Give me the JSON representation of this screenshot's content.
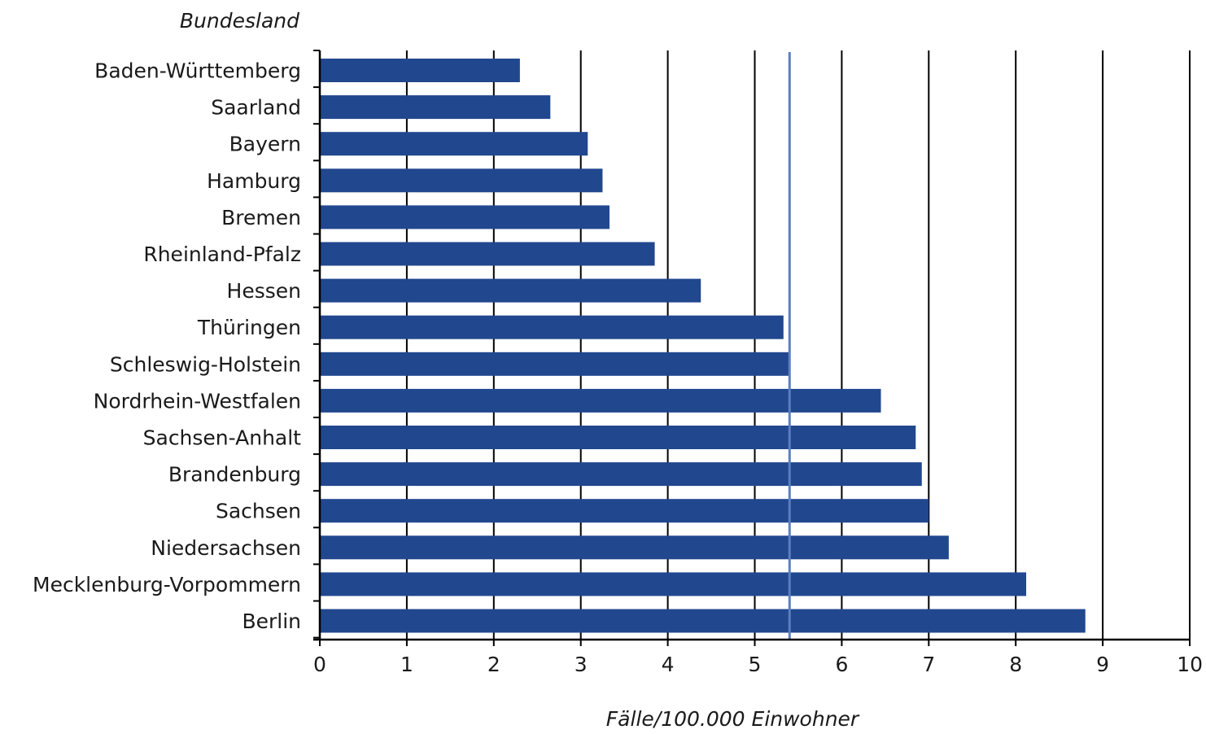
{
  "chart_data": {
    "type": "bar",
    "orientation": "horizontal",
    "ylabel": "Bundesland",
    "xlabel": "Fälle/100.000 Einwohner",
    "xlim": [
      0,
      10
    ],
    "xticks": [
      "0",
      "1",
      "2",
      "3",
      "4",
      "5",
      "6",
      "7",
      "8",
      "9",
      "10"
    ],
    "categories": [
      "Baden-Württemberg",
      "Saarland",
      "Bayern",
      "Hamburg",
      "Bremen",
      "Rheinland-Pfalz",
      "Hessen",
      "Thüringen",
      "Schleswig-Holstein",
      "Nordrhein-Westfalen",
      "Sachsen-Anhalt",
      "Brandenburg",
      "Sachsen",
      "Niedersachsen",
      "Mecklenburg-Vorpommern",
      "Berlin"
    ],
    "values": [
      2.3,
      2.65,
      3.08,
      3.25,
      3.33,
      3.85,
      4.38,
      5.33,
      5.4,
      6.45,
      6.85,
      6.92,
      7.0,
      7.23,
      8.12,
      8.8
    ],
    "reference_line": 5.4,
    "grid": true,
    "colors": {
      "bar": "#21478e",
      "reference_line": "#5b7fbf",
      "grid": "#000000",
      "text": "#1a1a1a"
    }
  }
}
